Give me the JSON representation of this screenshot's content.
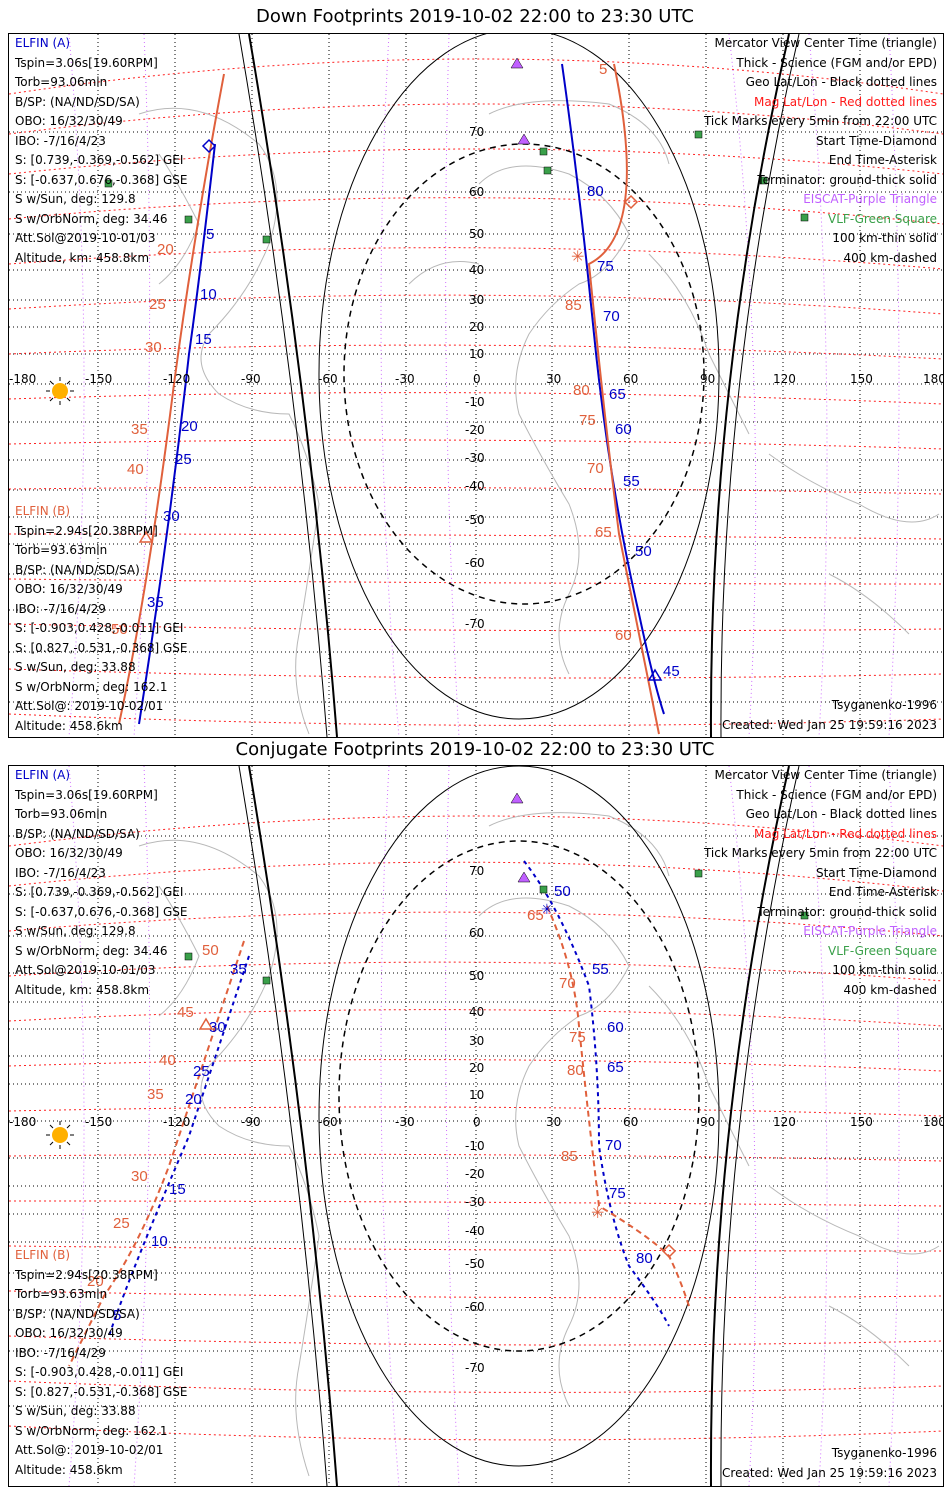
{
  "titles": {
    "down": "Down Footprints 2019-10-02 22:00 to 23:30 UTC",
    "conjugate": "Conjugate Footprints 2019-10-02 22:00 to 23:30 UTC"
  },
  "elfin_a": {
    "name": "ELFIN (A)",
    "lines": [
      "Tspin=3.06s[19.60RPM]",
      "Torb=93.06min",
      "B/SP: (NA/ND/SD/SA)",
      "OBO: 16/32/30/49",
      "IBO: -7/16/4/23",
      "S: [0.739,-0.369,-0.562] GEI",
      "S: [-0.637,0.676,-0.368] GSE",
      "S w/Sun, deg: 129.8",
      "S w/OrbNorm, deg: 34.46",
      "Att.Sol@2019-10-01/03",
      "Altitude, km: 458.8km"
    ]
  },
  "elfin_b": {
    "name": "ELFIN (B)",
    "lines": [
      "Tspin=2.94s[20.38RPM]",
      "Torb=93.63min",
      "B/SP: (NA/ND/SD/SA)",
      "OBO: 16/32/30/49",
      "IBO: -7/16/4/29",
      "S: [-0.903,0.428,-0.011] GEI",
      "S: [0.827,-0.531,-0.368] GSE",
      "S w/Sun, deg: 33.88",
      "S w/OrbNorm, deg: 162.1",
      "Att.Sol@: 2019-10-02/01",
      "Altitude: 458.6km"
    ]
  },
  "legend": {
    "view": "Mercator View Center Time (triangle)",
    "thick": "Thick - Science (FGM and/or EPD)",
    "geo": "Geo Lat/Lon - Black dotted lines",
    "mag": "Mag Lat/Lon - Red dotted lines",
    "ticks": "Tick Marks every 5min from 22:00 UTC",
    "start": "Start Time-Diamond",
    "end": "End Time-Asterisk",
    "terminator": "Terminator: ground-thick solid",
    "eiscat": "EISCAT-Purple Triangle",
    "vlf": "VLF-Green Square",
    "km100": "100 km-thin solid",
    "km400": "400 km-dashed"
  },
  "footer": {
    "model": "Tsyganenko-1996",
    "created": "Created: Wed Jan 25 19:59:16 2023"
  },
  "axes": {
    "lon_ticks": [
      "-180",
      "-150",
      "-120",
      "-90",
      "-60",
      "-30",
      "0",
      "30",
      "60",
      "90",
      "120",
      "150",
      "180"
    ],
    "lat_ticks_down": [
      "70",
      "60",
      "50",
      "40",
      "30",
      "20",
      "10",
      "0",
      "-10",
      "-20",
      "-30",
      "-40",
      "-50",
      "-60",
      "-70"
    ],
    "lat_ticks_conj": [
      "70",
      "60",
      "50",
      "40",
      "30",
      "20",
      "10",
      "0",
      "-10",
      "-20",
      "-30",
      "-40",
      "-50",
      "-60",
      "-70"
    ]
  },
  "track_labels": {
    "down_a_left": [
      "5",
      "10",
      "15",
      "20",
      "25",
      "30",
      "35"
    ],
    "down_b_left": [
      "20",
      "25",
      "30",
      "35",
      "40",
      "45",
      "50"
    ],
    "down_a_right": [
      "80",
      "75",
      "70",
      "65",
      "60",
      "55",
      "50",
      "45"
    ],
    "down_b_right": [
      "5",
      "85",
      "80",
      "75",
      "70",
      "65",
      "60"
    ],
    "conj_a_left": [
      "35",
      "30",
      "25",
      "20",
      "15",
      "10",
      "5"
    ],
    "conj_b_left": [
      "50",
      "45",
      "40",
      "35",
      "30",
      "25",
      "20"
    ],
    "conj_a_right": [
      "50",
      "55",
      "60",
      "65",
      "70",
      "75",
      "80"
    ],
    "conj_b_right": [
      "65",
      "70",
      "75",
      "80",
      "85"
    ]
  },
  "colors": {
    "elfin_a": "#0000c8",
    "elfin_b": "#e0603c",
    "mag_grid": "#ff2020",
    "geo_grid": "#000000",
    "eiscat": "#c060ff",
    "vlf": "#3aa04a",
    "sun": "#ffb000"
  }
}
